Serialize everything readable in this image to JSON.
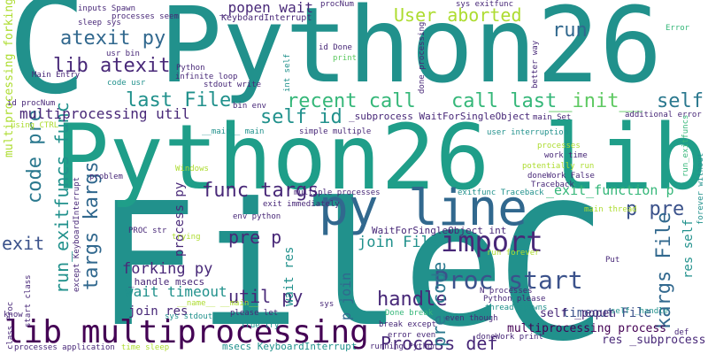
{
  "colors": {
    "background": "#ffffff",
    "teal": "#21918c",
    "darkTeal": "#2a788e",
    "blue": "#31688e",
    "navy": "#3b528b",
    "purple": "#482878",
    "darkPurple": "#440154",
    "green": "#35b779",
    "lightGreen": "#5ec962",
    "yellowGreen": "#addc30",
    "yellow": "#dde318",
    "cyan": "#1f9e89"
  },
  "words": [
    {
      "text": "Python26",
      "color": "teal"
    },
    {
      "text": "File",
      "color": "teal"
    },
    {
      "text": "C",
      "color": "teal"
    },
    {
      "text": "Python26 lib",
      "color": "cyan"
    },
    {
      "text": "C",
      "color": "teal"
    },
    {
      "text": "py line",
      "color": "blue"
    },
    {
      "text": "lib multiprocessing",
      "color": "darkPurple"
    },
    {
      "text": "import",
      "color": "purple"
    },
    {
      "text": "Proc start",
      "color": "navy"
    },
    {
      "text": "recent call",
      "color": "green"
    },
    {
      "text": "call last",
      "color": "green"
    },
    {
      "text": "__init__",
      "color": "lightGreen"
    },
    {
      "text": "self",
      "color": "darkTeal"
    },
    {
      "text": "atexit py",
      "color": "blue"
    },
    {
      "text": "lib atexit",
      "color": "purple"
    },
    {
      "text": "last File",
      "color": "teal"
    },
    {
      "text": "self id",
      "color": "teal"
    },
    {
      "text": "func targs",
      "color": "purple"
    },
    {
      "text": "targs kargs",
      "color": "blue"
    },
    {
      "text": "run_exitfuncs func",
      "color": "teal"
    },
    {
      "text": "code pre",
      "color": "darkTeal"
    },
    {
      "text": "multiprocessing util",
      "color": "purple"
    },
    {
      "text": "User aborted",
      "color": "yellowGreen"
    },
    {
      "text": "run",
      "color": "blue"
    },
    {
      "text": "p pre",
      "color": "navy"
    },
    {
      "text": "kargs File",
      "color": "blue"
    },
    {
      "text": "handle",
      "color": "purple"
    },
    {
      "text": "Process def",
      "color": "purple"
    },
    {
      "text": "pre code",
      "color": "darkTeal"
    },
    {
      "text": "pre p",
      "color": "purple"
    },
    {
      "text": "exit",
      "color": "navy"
    },
    {
      "text": "forking py",
      "color": "purple"
    },
    {
      "text": "wait timeout",
      "color": "teal"
    },
    {
      "text": "util py",
      "color": "purple"
    },
    {
      "text": "join File",
      "color": "teal"
    },
    {
      "text": "timeout File",
      "color": "navy"
    },
    {
      "text": "multiprocessing process",
      "color": "darkPurple"
    },
    {
      "text": "res _subprocess",
      "color": "purple"
    },
    {
      "text": "process py",
      "color": "purple"
    },
    {
      "text": "join res",
      "color": "purple"
    },
    {
      "text": "_exit_function p",
      "color": "green"
    },
    {
      "text": "wait res",
      "color": "teal"
    },
    {
      "text": "p join",
      "color": "blue"
    },
    {
      "text": "res self",
      "color": "teal"
    },
    {
      "text": "self _popen",
      "color": "purple"
    },
    {
      "text": "multiprocessing forking",
      "color": "yellowGreen"
    },
    {
      "text": "_popen wait",
      "color": "purple"
    },
    {
      "text": "KeyboardInterrupt",
      "color": "purple"
    },
    {
      "text": "procNum",
      "color": "purple"
    },
    {
      "text": "sys exitfunc",
      "color": "purple"
    },
    {
      "text": "processes seem",
      "color": "purple"
    },
    {
      "text": "inputs Spawn",
      "color": "purple"
    },
    {
      "text": "sleep sys",
      "color": "purple"
    },
    {
      "text": "usr bin",
      "color": "purple"
    },
    {
      "text": "Main Entry",
      "color": "purple"
    },
    {
      "text": "code usr",
      "color": "teal"
    },
    {
      "text": "Python",
      "color": "purple"
    },
    {
      "text": "infinite loop",
      "color": "purple"
    },
    {
      "text": "stdout write",
      "color": "purple"
    },
    {
      "text": "id Done",
      "color": "purple"
    },
    {
      "text": "print",
      "color": "lightGreen"
    },
    {
      "text": "int self",
      "color": "teal"
    },
    {
      "text": "done processing",
      "color": "purple"
    },
    {
      "text": "better way",
      "color": "purple"
    },
    {
      "text": "Error",
      "color": "green"
    },
    {
      "text": "id procNum",
      "color": "purple"
    },
    {
      "text": "bin env",
      "color": "purple"
    },
    {
      "text": "using CTRL",
      "color": "yellowGreen"
    },
    {
      "text": "_subprocess WaitForSingleObject",
      "color": "purple"
    },
    {
      "text": "main Set",
      "color": "purple"
    },
    {
      "text": "additional error",
      "color": "purple"
    },
    {
      "text": "__main__ main",
      "color": "teal"
    },
    {
      "text": "simple multiple",
      "color": "purple"
    },
    {
      "text": "user interruption",
      "color": "teal"
    },
    {
      "text": "processes",
      "color": "yellowGreen"
    },
    {
      "text": "work time",
      "color": "purple"
    },
    {
      "text": "potentially run",
      "color": "yellowGreen"
    },
    {
      "text": "doneWork False",
      "color": "purple"
    },
    {
      "text": "run_exitfuncs",
      "color": "green"
    },
    {
      "text": "Windows",
      "color": "yellowGreen"
    },
    {
      "text": "problem",
      "color": "purple"
    },
    {
      "text": "multiple processes",
      "color": "purple"
    },
    {
      "text": "exitfunc Traceback",
      "color": "teal"
    },
    {
      "text": "Traceback",
      "color": "purple"
    },
    {
      "text": "sys",
      "color": "purple"
    },
    {
      "text": "forever without",
      "color": "teal"
    },
    {
      "text": "exit immediately",
      "color": "purple"
    },
    {
      "text": "env python",
      "color": "purple"
    },
    {
      "text": "WaitForSingleObject int",
      "color": "purple"
    },
    {
      "text": "main thread",
      "color": "yellowGreen"
    },
    {
      "text": "except KeyboardInterrupt",
      "color": "purple"
    },
    {
      "text": "PROC str",
      "color": "purple"
    },
    {
      "text": "trying",
      "color": "yellowGreen"
    },
    {
      "text": "_handle msecs",
      "color": "purple"
    },
    {
      "text": "sys stdout",
      "color": "teal"
    },
    {
      "text": "please let",
      "color": "purple"
    },
    {
      "text": "True try",
      "color": "teal"
    },
    {
      "text": "__name__ __main__",
      "color": "yellowGreen"
    },
    {
      "text": "run forever",
      "color": "yellowGreen"
    },
    {
      "text": "N processes",
      "color": "purple"
    },
    {
      "text": "Python please",
      "color": "purple"
    },
    {
      "text": "thread spawns",
      "color": "teal"
    },
    {
      "text": "Done break",
      "color": "green"
    },
    {
      "text": "doneWork print",
      "color": "purple"
    },
    {
      "text": "even though",
      "color": "purple"
    },
    {
      "text": "self _handle",
      "color": "teal"
    },
    {
      "text": "start class",
      "color": "purple"
    },
    {
      "text": "know",
      "color": "purple"
    },
    {
      "text": "class Proc",
      "color": "purple"
    },
    {
      "text": "processes application",
      "color": "purple"
    },
    {
      "text": "time sleep",
      "color": "yellowGreen"
    },
    {
      "text": "msecs KeyboardInterrupt",
      "color": "teal"
    },
    {
      "text": "break except",
      "color": "purple"
    },
    {
      "text": "error even",
      "color": "purple"
    },
    {
      "text": "running Python",
      "color": "purple"
    },
    {
      "text": "def",
      "color": "purple"
    },
    {
      "text": "Put",
      "color": "purple"
    }
  ]
}
